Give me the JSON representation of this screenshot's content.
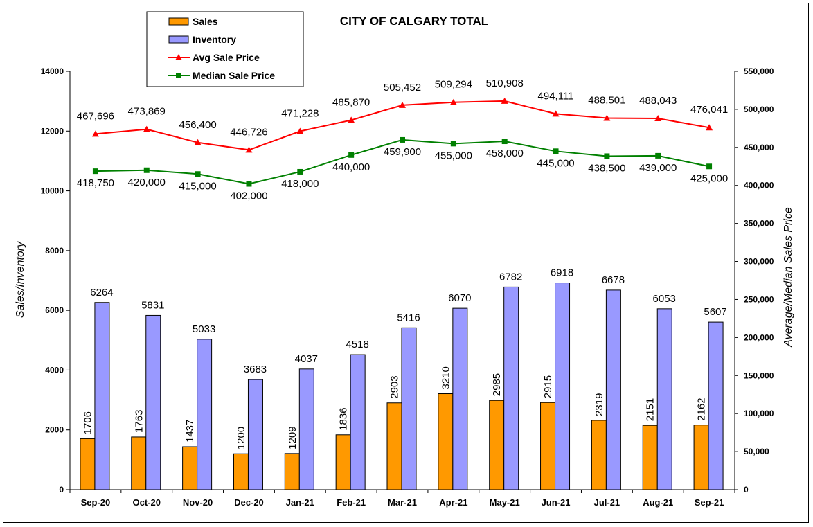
{
  "chart_data": {
    "type": "bar",
    "title": "CITY OF CALGARY TOTAL",
    "ylabel": "Sales/Inventory",
    "y2label": "Average/Median Sales Price",
    "ylim": [
      0,
      14000
    ],
    "y2lim": [
      0,
      550000
    ],
    "yticks": [
      "0",
      "2000",
      "4000",
      "6000",
      "8000",
      "10000",
      "12000",
      "14000"
    ],
    "y2ticks": [
      "0",
      "50,000",
      "100,000",
      "150,000",
      "200,000",
      "250,000",
      "300,000",
      "350,000",
      "400,000",
      "450,000",
      "500,000",
      "550,000"
    ],
    "grid": false,
    "legend_position": "top-left",
    "categories": [
      "Sep-20",
      "Oct-20",
      "Nov-20",
      "Dec-20",
      "Jan-21",
      "Feb-21",
      "Mar-21",
      "Apr-21",
      "May-21",
      "Jun-21",
      "Jul-21",
      "Aug-21",
      "Sep-21"
    ],
    "series": [
      {
        "name": "Sales",
        "kind": "bar",
        "axis": "left",
        "color": "#FF9900",
        "values": [
          1706,
          1763,
          1437,
          1200,
          1209,
          1836,
          2903,
          3210,
          2985,
          2915,
          2319,
          2151,
          2162
        ],
        "labels": [
          "1706",
          "1763",
          "1437",
          "1200",
          "1209",
          "1836",
          "2903",
          "3210",
          "2985",
          "2915",
          "2319",
          "2151",
          "2162"
        ]
      },
      {
        "name": "Inventory",
        "kind": "bar",
        "axis": "left",
        "color": "#9999FF",
        "values": [
          6264,
          5831,
          5033,
          3683,
          4037,
          4518,
          5416,
          6070,
          6782,
          6918,
          6678,
          6053,
          5607
        ],
        "labels": [
          "6264",
          "5831",
          "5033",
          "3683",
          "4037",
          "4518",
          "5416",
          "6070",
          "6782",
          "6918",
          "6678",
          "6053",
          "5607"
        ]
      },
      {
        "name": "Avg Sale Price",
        "kind": "line",
        "axis": "right",
        "color": "#FF0000",
        "marker": "triangle",
        "values": [
          467696,
          473869,
          456400,
          446726,
          471228,
          485870,
          505452,
          509294,
          510908,
          494111,
          488501,
          488043,
          476041
        ],
        "labels": [
          "467,696",
          "473,869",
          "456,400",
          "446,726",
          "471,228",
          "485,870",
          "505,452",
          "509,294",
          "510,908",
          "494,111",
          "488,501",
          "488,043",
          "476,041"
        ]
      },
      {
        "name": "Median Sale Price",
        "kind": "line",
        "axis": "right",
        "color": "#008000",
        "marker": "square",
        "values": [
          418750,
          420000,
          415000,
          402000,
          418000,
          440000,
          459900,
          455000,
          458000,
          445000,
          438500,
          439000,
          425000
        ],
        "labels": [
          "418,750",
          "420,000",
          "415,000",
          "402,000",
          "418,000",
          "440,000",
          "459,900",
          "455,000",
          "458,000",
          "445,000",
          "438,500",
          "439,000",
          "425,000"
        ]
      }
    ]
  }
}
